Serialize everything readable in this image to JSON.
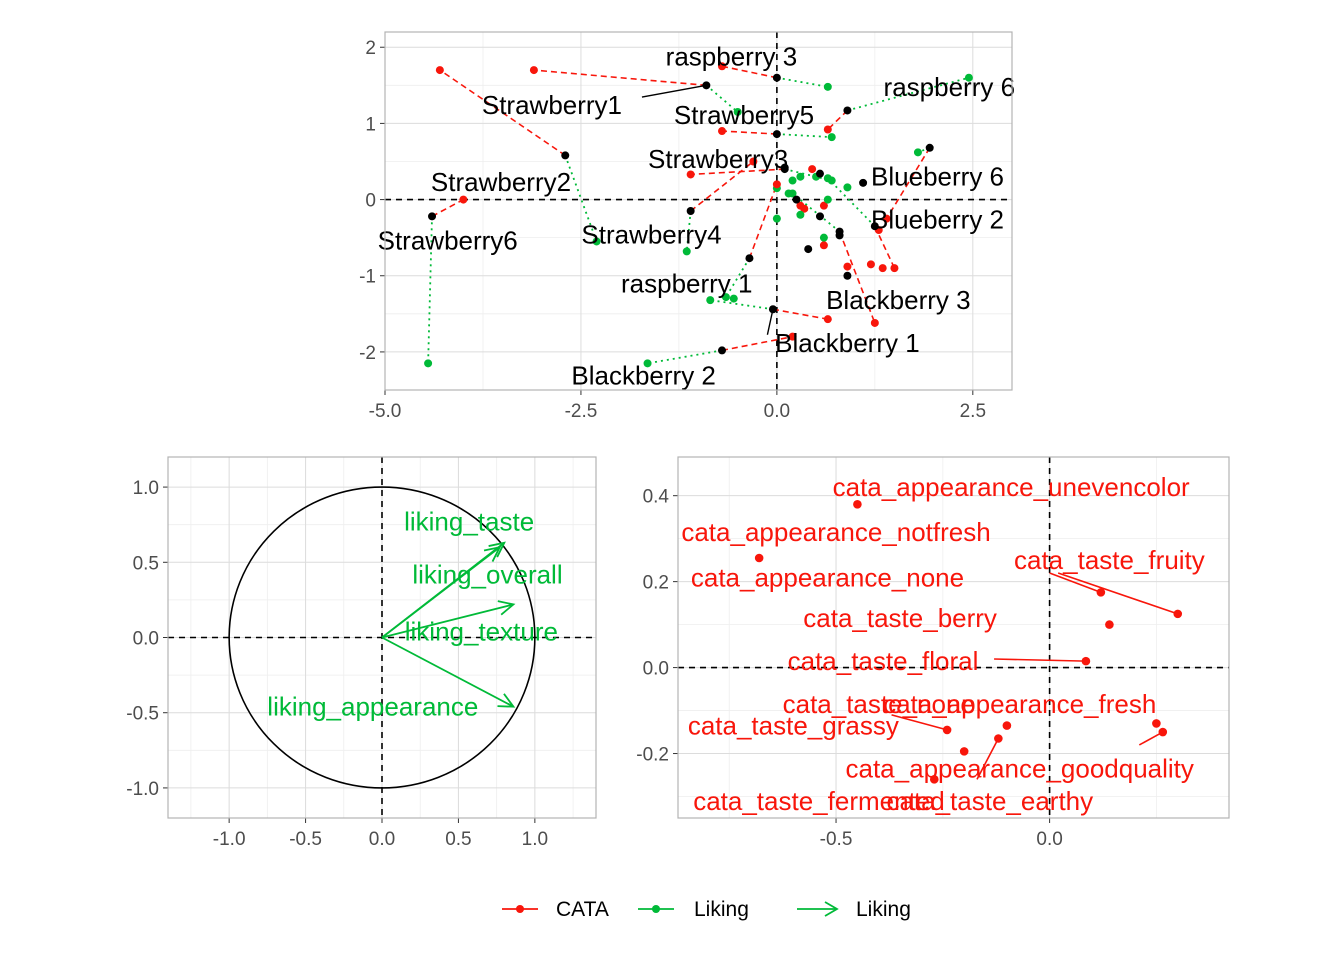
{
  "colors": {
    "cata": "#F8160B",
    "liking": "#00BA38",
    "mean": "#000000",
    "grid_major": "#dcdcdc",
    "grid_minor": "#eeeeee",
    "panel_border": "#b3b3b3"
  },
  "legend": {
    "position": "bottom",
    "entries": [
      {
        "label": "CATA",
        "kind": "point-line",
        "color": "#F8160B"
      },
      {
        "label": "Liking",
        "kind": "point-line",
        "color": "#00BA38"
      },
      {
        "label": "Liking",
        "kind": "arrow",
        "color": "#00BA38"
      }
    ]
  },
  "chart_data": [
    {
      "id": "products",
      "type": "scatter",
      "title": "",
      "xlabel": "",
      "ylabel": "",
      "xlim": [
        -5.0,
        3.0
      ],
      "ylim": [
        -2.5,
        2.2
      ],
      "xticks": [
        -5.0,
        -2.5,
        0.0,
        2.5
      ],
      "xtick_labels": [
        "-5.0",
        "-2.5",
        "0.0",
        "2.5"
      ],
      "yticks": [
        -2,
        -1,
        0,
        1,
        2
      ],
      "ytick_labels": [
        "-2",
        "-1",
        "0",
        "1",
        "2"
      ],
      "grid": true,
      "reference_lines": {
        "x": 0,
        "y": 0,
        "style": "dashed"
      },
      "products": [
        {
          "label": "Strawberry1",
          "mean": [
            -0.9,
            1.5
          ],
          "cata": [
            -3.1,
            1.7
          ],
          "liking": [
            -0.5,
            1.15
          ],
          "label_pos": [
            -2.87,
            1.24
          ],
          "leader": true
        },
        {
          "label": "Strawberry2",
          "mean": [
            -2.7,
            0.58
          ],
          "cata": [
            -4.3,
            1.7
          ],
          "liking": [
            -2.3,
            -0.55
          ],
          "label_pos": [
            -3.52,
            0.23
          ]
        },
        {
          "label": "Strawberry3",
          "mean": [
            0.1,
            0.4
          ],
          "cata": [
            -1.1,
            0.33
          ],
          "liking": [
            0.7,
            0.25
          ],
          "label_pos": [
            -0.75,
            0.53
          ]
        },
        {
          "label": "Strawberry4",
          "mean": [
            -1.1,
            -0.15
          ],
          "cata": [
            -0.3,
            0.5
          ],
          "liking": [
            -1.15,
            -0.68
          ],
          "label_pos": [
            -1.6,
            -0.46
          ]
        },
        {
          "label": "Strawberry5",
          "mean": [
            0.0,
            0.86
          ],
          "cata": [
            -0.7,
            0.9
          ],
          "liking": [
            0.7,
            0.82
          ],
          "label_pos": [
            -0.42,
            1.11
          ]
        },
        {
          "label": "Strawberry6",
          "mean": [
            -4.4,
            -0.22
          ],
          "cata": [
            -4.0,
            0.0
          ],
          "liking": [
            -4.45,
            -2.15
          ],
          "label_pos": [
            -4.2,
            -0.54
          ]
        },
        {
          "label": "raspberry 3",
          "mean": [
            0.0,
            1.6
          ],
          "cata": [
            -0.7,
            1.75
          ],
          "liking": [
            0.65,
            1.48
          ],
          "label_pos": [
            -0.58,
            1.88
          ]
        },
        {
          "label": "raspberry 6",
          "mean": [
            0.9,
            1.17
          ],
          "cata": [
            0.65,
            0.92
          ],
          "liking": [
            2.45,
            1.6
          ],
          "label_pos": [
            2.2,
            1.48
          ]
        },
        {
          "label": "raspberry 1",
          "mean": [
            -0.35,
            -0.77
          ],
          "cata": [
            0.0,
            0.2
          ],
          "liking": [
            -0.65,
            -1.28
          ],
          "label_pos": [
            -1.15,
            -1.1
          ]
        },
        {
          "label": "Blueberry 6",
          "mean": [
            1.95,
            0.68
          ],
          "cata": [
            1.4,
            -0.25
          ],
          "liking": [
            1.8,
            0.62
          ],
          "label_pos": [
            2.05,
            0.3
          ]
        },
        {
          "label": "Blueberry 2",
          "mean": [
            1.25,
            -0.35
          ],
          "cata": [
            1.5,
            -0.9
          ],
          "liking": [
            0.65,
            0.28
          ],
          "label_pos": [
            2.05,
            -0.26
          ]
        },
        {
          "label": "Blackberry 3",
          "mean": [
            0.8,
            -0.42
          ],
          "cata": [
            1.25,
            -1.62
          ],
          "liking": [
            0.2,
            0.08
          ],
          "label_pos": [
            1.55,
            -1.32
          ]
        },
        {
          "label": "Blackberry 1",
          "mean": [
            -0.05,
            -1.44
          ],
          "cata": [
            0.65,
            -1.57
          ],
          "liking": [
            -0.85,
            -1.32
          ],
          "label_pos": [
            0.9,
            -1.88
          ],
          "leader": true
        },
        {
          "label": "Blackberry 2",
          "mean": [
            -0.7,
            -1.98
          ],
          "cata": [
            0.2,
            -1.8
          ],
          "liking": [
            -1.65,
            -2.15
          ],
          "label_pos": [
            -1.7,
            -2.31
          ]
        }
      ],
      "extra_points": {
        "mean": [
          [
            0.1,
            0.42
          ],
          [
            0.55,
            0.34
          ],
          [
            1.1,
            0.22
          ],
          [
            0.25,
            0.0
          ],
          [
            0.55,
            -0.22
          ],
          [
            0.4,
            -0.65
          ],
          [
            0.9,
            -1.0
          ],
          [
            0.8,
            -0.47
          ]
        ],
        "cata": [
          [
            0.45,
            0.4
          ],
          [
            0.3,
            -0.08
          ],
          [
            0.6,
            -0.08
          ],
          [
            0.9,
            -0.88
          ],
          [
            0.6,
            -0.6
          ],
          [
            0.35,
            -0.12
          ],
          [
            1.35,
            -0.9
          ],
          [
            1.2,
            -0.85
          ],
          [
            1.3,
            -0.4
          ]
        ],
        "liking": [
          [
            0.2,
            0.25
          ],
          [
            0.3,
            0.3
          ],
          [
            0.0,
            0.15
          ],
          [
            0.5,
            0.3
          ],
          [
            0.9,
            0.16
          ],
          [
            0.15,
            0.08
          ],
          [
            0.65,
            0.0
          ],
          [
            0.3,
            -0.2
          ],
          [
            0.0,
            -0.25
          ],
          [
            -0.55,
            -1.3
          ],
          [
            0.6,
            -0.5
          ]
        ]
      }
    },
    {
      "id": "liking-circle",
      "type": "scatter",
      "title": "",
      "xlabel": "",
      "ylabel": "",
      "xlim": [
        -1.4,
        1.4
      ],
      "ylim": [
        -1.2,
        1.2
      ],
      "xticks": [
        -1.0,
        -0.5,
        0.0,
        0.5,
        1.0
      ],
      "xtick_labels": [
        "-1.0",
        "-0.5",
        "0.0",
        "0.5",
        "1.0"
      ],
      "yticks": [
        -1.0,
        -0.5,
        0.0,
        0.5,
        1.0
      ],
      "ytick_labels": [
        "-1.0",
        "-0.5",
        "0.0",
        "0.5",
        "1.0"
      ],
      "grid": true,
      "unit_circle": true,
      "reference_lines": {
        "x": 0,
        "y": 0,
        "style": "dashed"
      },
      "arrows": [
        {
          "label": "liking_taste",
          "x": 0.8,
          "y": 0.63,
          "label_pos": [
            0.57,
            0.77
          ]
        },
        {
          "label": "liking_overall",
          "x": 0.77,
          "y": 0.6,
          "label_pos": [
            0.69,
            0.42
          ]
        },
        {
          "label": "liking_texture",
          "x": 0.86,
          "y": 0.22,
          "label_pos": [
            0.65,
            0.04
          ]
        },
        {
          "label": "liking_appearance",
          "x": 0.86,
          "y": -0.46,
          "label_pos": [
            -0.06,
            -0.46
          ]
        }
      ]
    },
    {
      "id": "cata-attributes",
      "type": "scatter",
      "title": "",
      "xlabel": "",
      "ylabel": "",
      "xlim": [
        -0.87,
        0.42
      ],
      "ylim": [
        -0.35,
        0.49
      ],
      "xticks": [
        -0.5,
        0.0
      ],
      "xtick_labels": [
        "-0.5",
        "0.0"
      ],
      "yticks": [
        -0.2,
        0.0,
        0.2,
        0.4
      ],
      "ytick_labels": [
        "-0.2",
        "0.0",
        "0.2",
        "0.4"
      ],
      "grid": true,
      "reference_lines": {
        "x": 0,
        "y": 0,
        "style": "dashed"
      },
      "points": [
        {
          "label": "cata_appearance_unevencolor",
          "x": -0.45,
          "y": 0.38,
          "label_pos": [
            -0.09,
            0.42
          ]
        },
        {
          "label": "cata_appearance_notfresh",
          "x": -0.68,
          "y": 0.255,
          "label_pos": [
            -0.5,
            0.315
          ]
        },
        {
          "label": "cata_appearance_none",
          "x": 0.12,
          "y": 0.175,
          "label_pos": [
            -0.52,
            0.21
          ],
          "leader": [
            -0.0,
            0.22
          ]
        },
        {
          "label": "cata_taste_fruity",
          "x": 0.3,
          "y": 0.125,
          "label_pos": [
            0.14,
            0.25
          ],
          "leader": [
            0.02,
            0.22
          ]
        },
        {
          "label": "cata_taste_berry",
          "x": 0.14,
          "y": 0.1,
          "label_pos": [
            -0.35,
            0.115
          ]
        },
        {
          "label": "cata_taste_floral",
          "x": 0.085,
          "y": 0.015,
          "label_pos": [
            -0.39,
            0.015
          ],
          "leader": [
            -0.13,
            0.02
          ]
        },
        {
          "label": "cata_taste_none",
          "x": -0.24,
          "y": -0.145,
          "label_pos": [
            -0.4,
            -0.085
          ],
          "leader": [
            -0.37,
            -0.11
          ]
        },
        {
          "label": "cata_appearance_fresh",
          "x": 0.25,
          "y": -0.13,
          "label_pos": [
            -0.07,
            -0.085
          ]
        },
        {
          "label": "cata_taste_grassy",
          "x": -0.1,
          "y": -0.135,
          "label_pos": [
            -0.6,
            -0.135
          ]
        },
        {
          "label": "cata_appearance_goodquality",
          "x": 0.265,
          "y": -0.15,
          "label_pos": [
            -0.07,
            -0.235
          ],
          "leader": [
            0.21,
            -0.18
          ]
        },
        {
          "label": "cata_taste_earthy",
          "x": -0.12,
          "y": -0.165,
          "label_pos": [
            -0.14,
            -0.31
          ],
          "leader": [
            -0.17,
            -0.26
          ]
        },
        {
          "label": "cata_taste_fermented",
          "x": -0.2,
          "y": -0.195,
          "label_pos": [
            -0.54,
            -0.31
          ]
        },
        {
          "label": "",
          "x": -0.27,
          "y": -0.26
        }
      ]
    }
  ]
}
